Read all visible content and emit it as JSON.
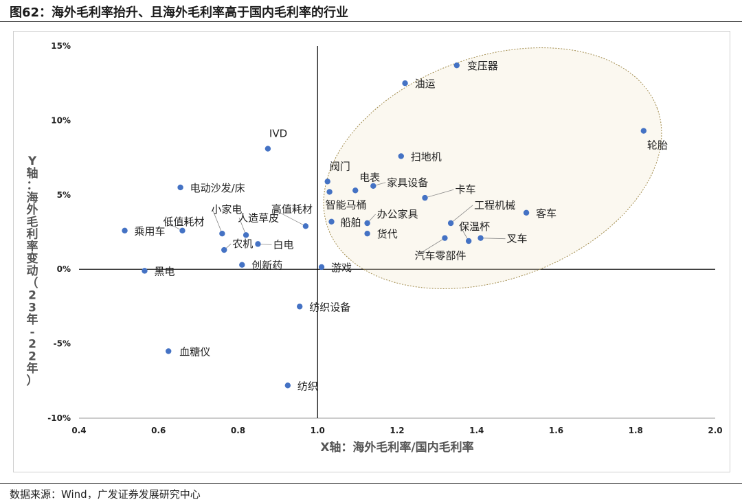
{
  "title": "图62：海外毛利率抬升、且海外毛利率高于国内毛利率的行业",
  "source": "数据来源：Wind，广发证券发展研究中心",
  "chart_data": {
    "type": "scatter",
    "xlabel": "X轴：海外毛利率/国内毛利率",
    "ylabel": "Y轴：海外毛利率变动（23年-22年）",
    "xlim": [
      0.4,
      2.0
    ],
    "ylim": [
      -10,
      15
    ],
    "xticks": [
      "0.4",
      "0.6",
      "0.8",
      "1.0",
      "1.2",
      "1.4",
      "1.6",
      "1.8",
      "2.0"
    ],
    "yticks": [
      "15%",
      "10%",
      "5%",
      "0%",
      "-5%",
      "-10%"
    ],
    "point_color": "#4472c4",
    "ellipse_color": "#a08a4a",
    "points": [
      {
        "label": "变压器",
        "x": 1.35,
        "y": 13.7
      },
      {
        "label": "油运",
        "x": 1.22,
        "y": 12.5
      },
      {
        "label": "轮胎",
        "x": 1.82,
        "y": 9.3
      },
      {
        "label": "IVD",
        "x": 0.875,
        "y": 8.1
      },
      {
        "label": "扫地机",
        "x": 1.21,
        "y": 7.6
      },
      {
        "label": "阀门",
        "x": 1.025,
        "y": 5.9
      },
      {
        "label": "电表",
        "x": 1.095,
        "y": 5.3
      },
      {
        "label": "家具设备",
        "x": 1.14,
        "y": 5.6
      },
      {
        "label": "智能马桶",
        "x": 1.03,
        "y": 5.2
      },
      {
        "label": "电动沙发/床",
        "x": 0.655,
        "y": 5.5
      },
      {
        "label": "卡车",
        "x": 1.27,
        "y": 4.8
      },
      {
        "label": "工程机械",
        "x": 1.335,
        "y": 3.1
      },
      {
        "label": "客车",
        "x": 1.525,
        "y": 3.8
      },
      {
        "label": "高值耗材",
        "x": 0.97,
        "y": 2.9
      },
      {
        "label": "小家电",
        "x": 0.76,
        "y": 2.4
      },
      {
        "label": "办公家具",
        "x": 1.125,
        "y": 3.1
      },
      {
        "label": "船舶",
        "x": 1.035,
        "y": 3.2
      },
      {
        "label": "保温杯",
        "x": 1.38,
        "y": 1.9
      },
      {
        "label": "叉车",
        "x": 1.41,
        "y": 2.1
      },
      {
        "label": "汽车零部件",
        "x": 1.32,
        "y": 2.1
      },
      {
        "label": "货代",
        "x": 1.125,
        "y": 2.4
      },
      {
        "label": "乘用车",
        "x": 0.515,
        "y": 2.6
      },
      {
        "label": "低值耗材",
        "x": 0.66,
        "y": 2.6
      },
      {
        "label": "人造草皮",
        "x": 0.82,
        "y": 2.3
      },
      {
        "label": "白电",
        "x": 0.85,
        "y": 1.7
      },
      {
        "label": "农机",
        "x": 0.765,
        "y": 1.3
      },
      {
        "label": "创新药",
        "x": 0.81,
        "y": 0.3
      },
      {
        "label": "游戏",
        "x": 1.01,
        "y": 0.15
      },
      {
        "label": "黑电",
        "x": 0.565,
        "y": -0.1
      },
      {
        "label": "纺织设备",
        "x": 0.955,
        "y": -2.5
      },
      {
        "label": "血糖仪",
        "x": 0.625,
        "y": -5.5
      },
      {
        "label": "纺织",
        "x": 0.925,
        "y": -7.8
      }
    ]
  }
}
